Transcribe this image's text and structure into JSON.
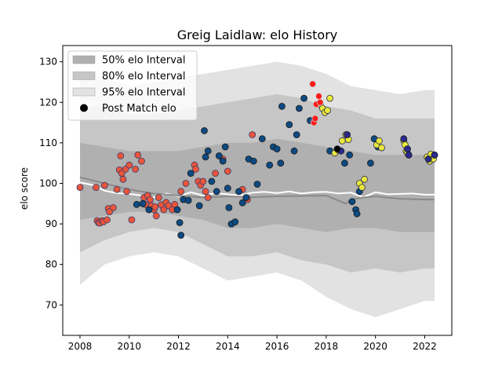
{
  "chart_data": {
    "type": "scatter",
    "title": "Greig Laidlaw: elo History",
    "xlabel": "",
    "ylabel": "elo score",
    "xlim": [
      2007.3,
      2023.1
    ],
    "ylim": [
      62.5,
      134
    ],
    "xticks": [
      2008,
      2010,
      2012,
      2014,
      2016,
      2018,
      2020,
      2022
    ],
    "yticks": [
      70,
      80,
      90,
      100,
      110,
      120,
      130
    ],
    "grid": false,
    "legend_position": "top-left",
    "legend": [
      {
        "label": "50% elo Interval",
        "kind": "band",
        "color": "#b0b0b0"
      },
      {
        "label": "80% elo Interval",
        "kind": "band",
        "color": "#c6c6c6"
      },
      {
        "label": "95% elo Interval",
        "kind": "band",
        "color": "#e2e2e2"
      },
      {
        "label": "Post Match elo",
        "kind": "marker",
        "color": "#000000"
      }
    ],
    "bands": {
      "x": [
        2008.0,
        2009.0,
        2010.0,
        2011.0,
        2012.0,
        2013.0,
        2014.0,
        2015.0,
        2016.0,
        2017.0,
        2018.0,
        2019.0,
        2020.0,
        2021.0,
        2022.0,
        2022.4
      ],
      "lo95": [
        75,
        80,
        82,
        83,
        82,
        79,
        76,
        77,
        78,
        76,
        72,
        69,
        67,
        69,
        71,
        71
      ],
      "hi95": [
        127,
        126,
        124,
        125,
        126,
        127,
        128,
        129,
        130,
        129,
        127,
        124,
        123,
        122,
        123,
        123
      ],
      "lo80": [
        83,
        86,
        88,
        89,
        88,
        85,
        82,
        82,
        83,
        81,
        80,
        78,
        79,
        78,
        79,
        79
      ],
      "hi80": [
        119,
        119,
        117,
        117,
        118,
        119,
        120,
        121,
        122,
        121,
        119,
        118,
        116,
        116,
        116,
        116
      ],
      "lo50": [
        91,
        92,
        93,
        93,
        92,
        91,
        89,
        89,
        90,
        89,
        88,
        89,
        89,
        88,
        88,
        88
      ],
      "hi50": [
        110,
        109,
        108,
        108,
        108,
        109,
        110,
        110,
        111,
        110,
        109,
        108,
        107,
        107,
        107,
        107
      ]
    },
    "series": [
      {
        "color": "#ffffff",
        "kind": "line",
        "x": [
          2008.0,
          2008.5,
          2009.0,
          2009.5,
          2010.0,
          2010.5,
          2011.0,
          2011.5,
          2012.0,
          2012.5,
          2013.0,
          2013.5,
          2014.0,
          2014.5,
          2015.0,
          2015.5,
          2016.0,
          2016.5,
          2017.0,
          2017.5,
          2018.0,
          2018.5,
          2019.0,
          2019.5,
          2020.0,
          2020.5,
          2021.0,
          2021.5,
          2022.0,
          2022.4
        ],
        "y": [
          100.2,
          99.6,
          98.2,
          97.6,
          97.4,
          97.0,
          96.5,
          97.5,
          96.8,
          97.8,
          97.0,
          97.6,
          97.3,
          97.0,
          97.7,
          97.9,
          97.6,
          98.0,
          97.5,
          97.8,
          97.9,
          97.5,
          97.7,
          96.6,
          97.8,
          97.3,
          97.4,
          97.5,
          97.2,
          97.2
        ]
      },
      {
        "color": "#8a8a8a",
        "kind": "line",
        "x": [
          2008.0,
          2009.0,
          2010.0,
          2011.0,
          2012.0,
          2013.0,
          2014.0,
          2015.0,
          2016.0,
          2017.0,
          2018.0,
          2018.8,
          2019.0,
          2019.5,
          2020.0,
          2021.0,
          2022.0,
          2022.4
        ],
        "y": [
          101.5,
          100.0,
          98.5,
          97.5,
          97.0,
          96.5,
          96.8,
          96.6,
          96.8,
          96.9,
          97.0,
          95.0,
          96.0,
          96.5,
          96.8,
          96.2,
          96.0,
          96.0
        ]
      },
      {
        "color": "#e8553a",
        "kind": "points",
        "x": [
          2008.0,
          2008.65,
          2008.7,
          2008.75,
          2008.8,
          2008.9,
          2008.95,
          2009.0,
          2009.1,
          2009.15,
          2009.2,
          2009.35,
          2009.5,
          2009.6,
          2009.65,
          2009.7,
          2009.75,
          2009.85,
          2009.9,
          2010.0,
          2010.1,
          2010.25,
          2010.35,
          2010.5,
          2010.6,
          2010.65,
          2010.75,
          2010.85,
          2010.9,
          2011.0,
          2011.05,
          2011.1,
          2011.2,
          2011.3,
          2011.4,
          2011.5,
          2011.6,
          2011.75,
          2011.85,
          2012.1,
          2012.3,
          2012.65,
          2012.7,
          2012.8,
          2012.9,
          2013.0,
          2013.1,
          2013.2,
          2013.5,
          2013.8,
          2014.0,
          2014.6,
          2014.8,
          2015.0
        ],
        "y": [
          99.0,
          99.0,
          90.8,
          90.3,
          90.2,
          90.8,
          90.5,
          99.5,
          91.0,
          93.8,
          93.0,
          94.0,
          98.5,
          103.3,
          106.8,
          102.5,
          101.0,
          103.5,
          98.0,
          104.5,
          91.0,
          103.5,
          107.0,
          105.5,
          96.5,
          94.8,
          97.0,
          96.0,
          94.5,
          93.5,
          94.2,
          92.0,
          96.5,
          94.7,
          93.5,
          95.3,
          94.5,
          93.5,
          94.8,
          98.0,
          100.0,
          104.5,
          103.5,
          100.5,
          99.5,
          100.5,
          98.0,
          96.5,
          102.5,
          106.0,
          103.0,
          98.5,
          96.0,
          112.0
        ]
      },
      {
        "color": "#0d4a82",
        "kind": "points",
        "x": [
          2010.3,
          2010.55,
          2010.8,
          2011.95,
          2012.05,
          2012.1,
          2012.2,
          2012.4,
          2012.5,
          2012.85,
          2013.05,
          2013.1,
          2013.2,
          2013.35,
          2013.55,
          2013.65,
          2013.8,
          2013.9,
          2014.0,
          2014.05,
          2014.15,
          2014.3,
          2014.45,
          2014.6,
          2014.75,
          2014.85,
          2015.05,
          2015.2,
          2015.4,
          2015.7,
          2015.85,
          2016.0,
          2016.15,
          2016.2,
          2016.5,
          2016.7,
          2016.8,
          2016.9,
          2017.1,
          2017.35,
          2018.15,
          2018.75,
          2018.95,
          2019.05,
          2019.2,
          2019.25,
          2019.35,
          2019.8,
          2019.95,
          2020.1
        ],
        "y": [
          94.8,
          95.0,
          93.5,
          93.5,
          90.3,
          87.2,
          96.0,
          95.8,
          102.5,
          94.5,
          113.0,
          106.5,
          108.0,
          100.5,
          98.0,
          106.8,
          105.5,
          109.0,
          98.8,
          94.0,
          90.0,
          90.5,
          98.0,
          95.2,
          96.5,
          106.0,
          105.5,
          99.8,
          111.0,
          104.5,
          109.0,
          108.5,
          105.0,
          119.0,
          114.5,
          108.0,
          112.0,
          118.5,
          121.0,
          115.5,
          108.0,
          105.0,
          107.0,
          95.5,
          93.5,
          92.5,
          98.0,
          105.0,
          111.0,
          109.0
        ]
      },
      {
        "color": "#e8e83a",
        "kind": "points",
        "x": [
          2017.75,
          2017.85,
          2017.95,
          2018.05,
          2018.15,
          2018.35,
          2018.5,
          2018.65,
          2018.8,
          2018.9,
          2019.35,
          2019.45,
          2019.55,
          2020.05,
          2020.15,
          2020.25,
          2021.15,
          2021.2,
          2021.25,
          2021.3,
          2021.35,
          2022.1,
          2022.2,
          2022.25,
          2022.35,
          2022.4
        ],
        "y": [
          119.5,
          118.5,
          117.5,
          118.0,
          121.0,
          107.5,
          108.2,
          110.5,
          112.0,
          110.8,
          100.0,
          99.0,
          101.0,
          109.5,
          110.5,
          108.8,
          110.5,
          109.5,
          108.0,
          107.5,
          107.0,
          106.5,
          105.5,
          107.2,
          106.0,
          107.0
        ]
      },
      {
        "color": "#2a2a8e",
        "kind": "points",
        "x": [
          2018.6,
          2018.85,
          2021.15,
          2021.3,
          2021.35,
          2022.15,
          2022.4
        ],
        "y": [
          108.0,
          112.0,
          111.0,
          108.5,
          107.0,
          106.0,
          107.0
        ]
      },
      {
        "color": "#ff1a1a",
        "kind": "points",
        "x": [
          2017.45,
          2017.5,
          2017.55,
          2017.6,
          2017.7,
          2017.75
        ],
        "y": [
          124.5,
          115.0,
          116.0,
          119.5,
          121.5,
          120.0
        ]
      },
      {
        "color": "#000000",
        "kind": "points",
        "x": [
          2018.45
        ],
        "y": [
          108.5
        ]
      }
    ]
  }
}
